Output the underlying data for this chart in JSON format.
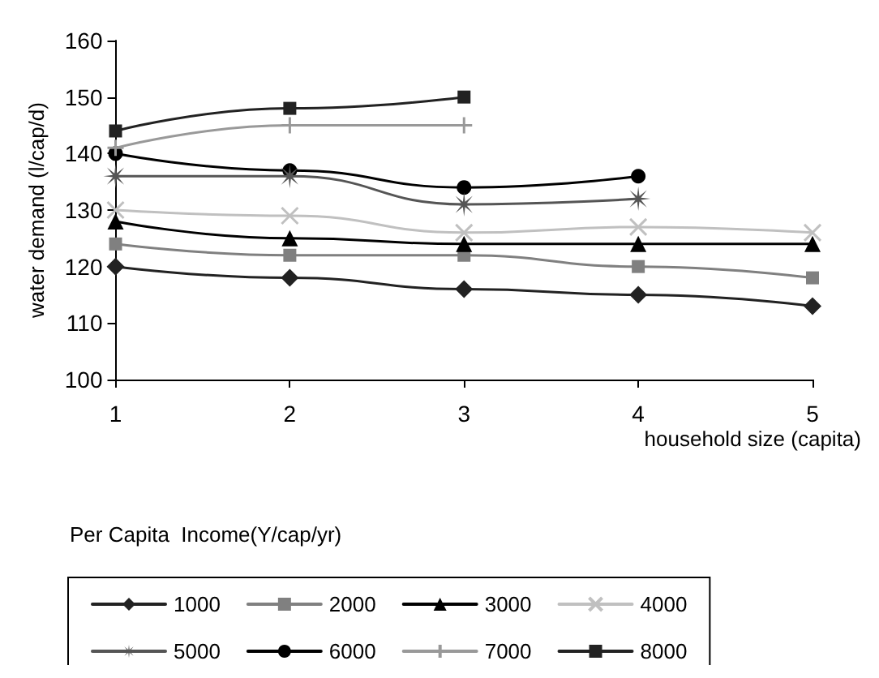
{
  "chart_data": {
    "type": "line",
    "xlabel": "household size (capita)",
    "ylabel": "water demand (l/cap/d)",
    "legend_title": "Per Capita  Income(Y/cap/yr)",
    "x": [
      1,
      2,
      3,
      4,
      5
    ],
    "xlim": [
      1,
      5
    ],
    "xticks": [
      1,
      2,
      3,
      4,
      5
    ],
    "ylim": [
      100,
      160
    ],
    "yticks": [
      100,
      110,
      120,
      130,
      140,
      150,
      160
    ],
    "grid": false,
    "legend": "bottom",
    "line_style": "solid",
    "series": [
      {
        "name": "1000",
        "color": "#222222",
        "marker": "diamond",
        "values": [
          120,
          118,
          116,
          115,
          113
        ]
      },
      {
        "name": "2000",
        "color": "#808080",
        "marker": "square",
        "values": [
          124,
          122,
          122,
          120,
          118
        ]
      },
      {
        "name": "3000",
        "color": "#000000",
        "marker": "triangle",
        "values": [
          128,
          125,
          124,
          124,
          124
        ]
      },
      {
        "name": "4000",
        "color": "#c0c0c0",
        "marker": "cross",
        "values": [
          130,
          129,
          126,
          127,
          126
        ]
      },
      {
        "name": "5000",
        "color": "#555555",
        "marker": "star",
        "values": [
          136,
          136,
          131,
          132,
          null
        ]
      },
      {
        "name": "6000",
        "color": "#000000",
        "marker": "circle",
        "values": [
          140,
          137,
          134,
          136,
          null
        ]
      },
      {
        "name": "7000",
        "color": "#999999",
        "marker": "plus",
        "values": [
          141,
          145,
          145,
          null,
          null
        ]
      },
      {
        "name": "8000",
        "color": "#222222",
        "marker": "square",
        "values": [
          144,
          148,
          150,
          null,
          null
        ]
      }
    ]
  }
}
